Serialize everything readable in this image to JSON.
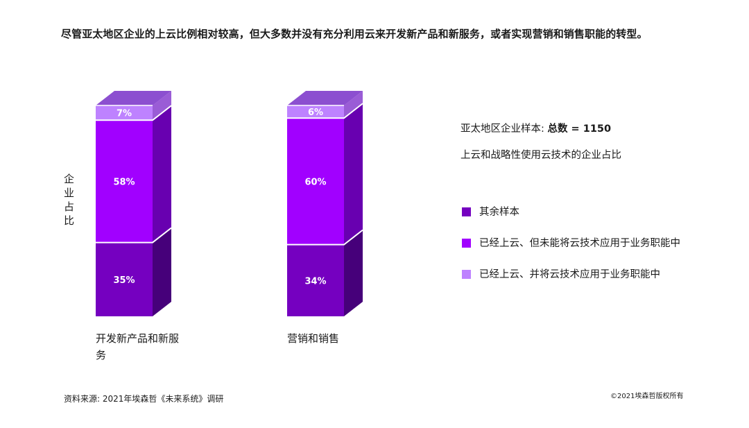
{
  "title": "尽管亚太地区企业的上云比例相对较高，但大多数并没有充分利用云来开发新产品和新服务，或者实现营销和销售职能的转型。",
  "meta": {
    "sample_label": "亚太地区企业样本: ",
    "sample_total": "总数 = 1150",
    "subtitle": "上云和战略性使用云技术的企业占比"
  },
  "source": "资料来源: 2021年埃森哲《未来系统》调研",
  "copyright": "©2021埃森哲版权所有",
  "chart_data": {
    "type": "bar",
    "stacked": true,
    "ylabel": "企业占比",
    "categories": [
      "开发新产品和新服务",
      "营销和销售"
    ],
    "series": [
      {
        "name": "其余样本",
        "values": [
          35,
          34
        ],
        "labels": [
          "35%",
          "34%"
        ],
        "color": "#7500c0"
      },
      {
        "name": "已经上云、但未能将云技术应用于业务职能中",
        "values": [
          58,
          60
        ],
        "labels": [
          "58%",
          "60%"
        ],
        "color": "#a100ff"
      },
      {
        "name": "已经上云、并将云技术应用于业务职能中",
        "values": [
          7,
          6
        ],
        "labels": [
          "7%",
          "6%"
        ],
        "color": "#be82ff"
      }
    ],
    "ylim": [
      0,
      100
    ],
    "legend_position": "right"
  }
}
